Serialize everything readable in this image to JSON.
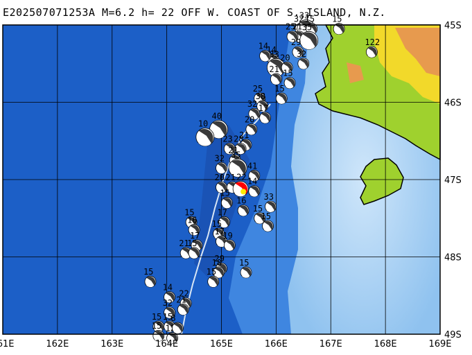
{
  "title": "E202507071253A  M=6.2  h= 22  OFF W. COAST OF S. ISLAND, N.Z.",
  "colors": {
    "deep_ocean": "#1c5fc7",
    "mid_ocean": "#3f86e0",
    "shelf": "#a9d3f5",
    "lowland": "#9fd12e",
    "highland": "#f2d92a",
    "mountain": "#e79a4e",
    "mainshock": "#ff0000",
    "trench_line": "#d9e6f5"
  },
  "axes": {
    "lon_labels": [
      "161E",
      "162E",
      "163E",
      "164E",
      "165E",
      "166E",
      "167E",
      "168E",
      "169E"
    ],
    "lat_labels": [
      "45S",
      "46S",
      "47S",
      "48S",
      "49S"
    ]
  },
  "mainshock": {
    "lon": 165.35,
    "lat": -47.12,
    "label": "22",
    "icon": "mainshock-beachball-icon"
  },
  "events": [
    {
      "lon": 166.45,
      "lat": -45.05,
      "label": "32"
    },
    {
      "lon": 166.55,
      "lat": -45.05,
      "label": "33"
    },
    {
      "lon": 166.65,
      "lat": -45.05,
      "label": "15"
    },
    {
      "lon": 166.42,
      "lat": -45.15,
      "label": "21"
    },
    {
      "lon": 166.6,
      "lat": -45.2,
      "label": "35"
    },
    {
      "lon": 167.15,
      "lat": -45.05,
      "label": "15"
    },
    {
      "lon": 166.3,
      "lat": -45.15,
      "label": "25"
    },
    {
      "lon": 166.4,
      "lat": -45.35,
      "label": "29"
    },
    {
      "lon": 166.5,
      "lat": -45.5,
      "label": "32"
    },
    {
      "lon": 165.95,
      "lat": -45.45,
      "label": "14"
    },
    {
      "lon": 166.0,
      "lat": -45.55,
      "label": "33"
    },
    {
      "lon": 166.2,
      "lat": -45.55,
      "label": "20"
    },
    {
      "lon": 166.25,
      "lat": -45.75,
      "label": "15"
    },
    {
      "lon": 166.0,
      "lat": -45.7,
      "label": "21"
    },
    {
      "lon": 167.75,
      "lat": -45.35,
      "label": "122"
    },
    {
      "lon": 165.7,
      "lat": -45.95,
      "label": "25"
    },
    {
      "lon": 165.75,
      "lat": -46.05,
      "label": "38"
    },
    {
      "lon": 166.1,
      "lat": -45.95,
      "label": "15"
    },
    {
      "lon": 165.6,
      "lat": -46.15,
      "label": "32"
    },
    {
      "lon": 165.8,
      "lat": -46.2,
      "label": "17"
    },
    {
      "lon": 165.55,
      "lat": -46.35,
      "label": "20"
    },
    {
      "lon": 164.95,
      "lat": -46.35,
      "label": "40"
    },
    {
      "lon": 164.7,
      "lat": -46.45,
      "label": "10"
    },
    {
      "lon": 165.45,
      "lat": -46.55,
      "label": "21"
    },
    {
      "lon": 165.15,
      "lat": -46.6,
      "label": "23"
    },
    {
      "lon": 165.35,
      "lat": -46.6,
      "label": "28"
    },
    {
      "lon": 165.25,
      "lat": -46.75,
      "label": "21"
    },
    {
      "lon": 165.3,
      "lat": -46.85,
      "label": "35"
    },
    {
      "lon": 165.0,
      "lat": -46.85,
      "label": "32"
    },
    {
      "lon": 165.6,
      "lat": -46.95,
      "label": "41"
    },
    {
      "lon": 165.0,
      "lat": -47.1,
      "label": "20"
    },
    {
      "lon": 165.2,
      "lat": -47.1,
      "label": "21"
    },
    {
      "lon": 165.6,
      "lat": -47.15,
      "label": "14"
    },
    {
      "lon": 165.1,
      "lat": -47.3,
      "label": "15"
    },
    {
      "lon": 165.9,
      "lat": -47.35,
      "label": "33"
    },
    {
      "lon": 165.4,
      "lat": -47.4,
      "label": "16"
    },
    {
      "lon": 165.7,
      "lat": -47.5,
      "label": "15"
    },
    {
      "lon": 165.05,
      "lat": -47.55,
      "label": "17"
    },
    {
      "lon": 165.85,
      "lat": -47.6,
      "label": "15"
    },
    {
      "lon": 164.45,
      "lat": -47.55,
      "label": "15"
    },
    {
      "lon": 164.5,
      "lat": -47.65,
      "label": "16"
    },
    {
      "lon": 164.95,
      "lat": -47.7,
      "label": "15"
    },
    {
      "lon": 165.0,
      "lat": -47.8,
      "label": "17"
    },
    {
      "lon": 165.15,
      "lat": -47.85,
      "label": "19"
    },
    {
      "lon": 164.55,
      "lat": -47.85,
      "label": "17"
    },
    {
      "lon": 164.35,
      "lat": -47.95,
      "label": "21"
    },
    {
      "lon": 164.5,
      "lat": -47.95,
      "label": "15"
    },
    {
      "lon": 165.0,
      "lat": -48.15,
      "label": "29"
    },
    {
      "lon": 164.95,
      "lat": -48.2,
      "label": "18"
    },
    {
      "lon": 165.45,
      "lat": -48.2,
      "label": "15"
    },
    {
      "lon": 164.85,
      "lat": -48.32,
      "label": "15"
    },
    {
      "lon": 163.7,
      "lat": -48.32,
      "label": "15"
    },
    {
      "lon": 164.05,
      "lat": -48.52,
      "label": "14"
    },
    {
      "lon": 164.35,
      "lat": -48.6,
      "label": "22"
    },
    {
      "lon": 164.3,
      "lat": -48.68,
      "label": "21"
    },
    {
      "lon": 164.05,
      "lat": -48.72,
      "label": "32"
    },
    {
      "lon": 163.85,
      "lat": -48.9,
      "label": "15"
    },
    {
      "lon": 164.05,
      "lat": -48.9,
      "label": "15"
    },
    {
      "lon": 163.85,
      "lat": -49.02,
      "label": "15"
    },
    {
      "lon": 164.1,
      "lat": -49.05,
      "label": "12"
    },
    {
      "lon": 164.2,
      "lat": -48.92,
      "label": "8"
    },
    {
      "lon": 165.8,
      "lat": -45.4,
      "label": "14"
    }
  ]
}
